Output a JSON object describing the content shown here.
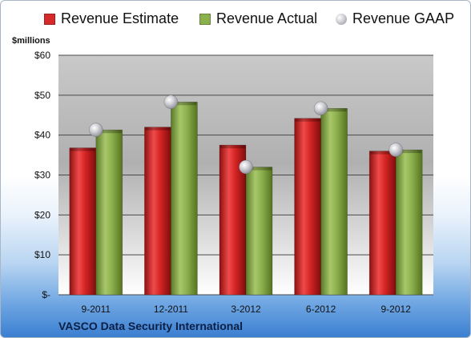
{
  "chart_data": {
    "type": "bar",
    "title": "VASCO Data Security International",
    "ylabel": "$millions",
    "categories": [
      "9-2011",
      "12-2011",
      "3-2012",
      "6-2012",
      "9-2012"
    ],
    "series": [
      {
        "name": "Revenue Estimate",
        "kind": "bar",
        "color": "#d42a2a",
        "values": [
          36.8,
          42.0,
          37.5,
          44.2,
          36.0
        ]
      },
      {
        "name": "Revenue Actual",
        "kind": "bar",
        "color": "#8db04e",
        "values": [
          41.3,
          48.3,
          32.0,
          46.7,
          36.3
        ]
      },
      {
        "name": "Revenue GAAP",
        "kind": "marker",
        "color": "#b8b8c0",
        "values": [
          41.3,
          48.3,
          32.0,
          46.7,
          36.3
        ]
      }
    ],
    "y_ticks": [
      {
        "value": 0,
        "label": "$-"
      },
      {
        "value": 10,
        "label": "$10"
      },
      {
        "value": 20,
        "label": "$20"
      },
      {
        "value": 30,
        "label": "$30"
      },
      {
        "value": 40,
        "label": "$40"
      },
      {
        "value": 50,
        "label": "$50"
      },
      {
        "value": 60,
        "label": "$60"
      }
    ],
    "ylim": [
      0,
      60
    ],
    "grid": true,
    "legend_position": "top"
  }
}
